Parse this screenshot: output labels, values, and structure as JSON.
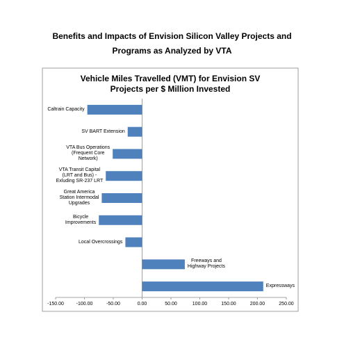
{
  "chart_data": {
    "type": "bar",
    "orientation": "horizontal",
    "title": "Benefits and Impacts of Envision Silicon Valley Projects and\nPrograms as Analyzed by VTA",
    "subtitle": "Vehicle Miles Travelled (VMT) for Envision SV\nProjects per $ Million Invested",
    "categories": [
      "Caltrain Capacity",
      "SV BART Extension",
      "VTA Bus Operations\n(Frequent Core\nNetwork)",
      "VTA Transit Capital\n(LRT and Bus) -\nExluding SR-237 LRT",
      "Great America\nStation Intermodal\nUpgrades",
      "Bicycle\nImprovements",
      "Local Overcrossings",
      "Freeways and\nHighway Projects",
      "Expressways"
    ],
    "values": [
      -95,
      -25,
      -51,
      -63,
      -70,
      -75,
      -29,
      74,
      210
    ],
    "color": "#4f81bd",
    "xlim": [
      -150,
      250
    ],
    "xticks": [
      {
        "value": -150,
        "label": "-150.00"
      },
      {
        "value": -100,
        "label": "-100.00"
      },
      {
        "value": -50,
        "label": "-50.00"
      },
      {
        "value": 0,
        "label": "0.00"
      },
      {
        "value": 50,
        "label": "50.00"
      },
      {
        "value": 100,
        "label": "100.00"
      },
      {
        "value": 150,
        "label": "150.00"
      },
      {
        "value": 200,
        "label": "200.00"
      },
      {
        "value": 250,
        "label": "250.00"
      }
    ],
    "grid": false
  }
}
